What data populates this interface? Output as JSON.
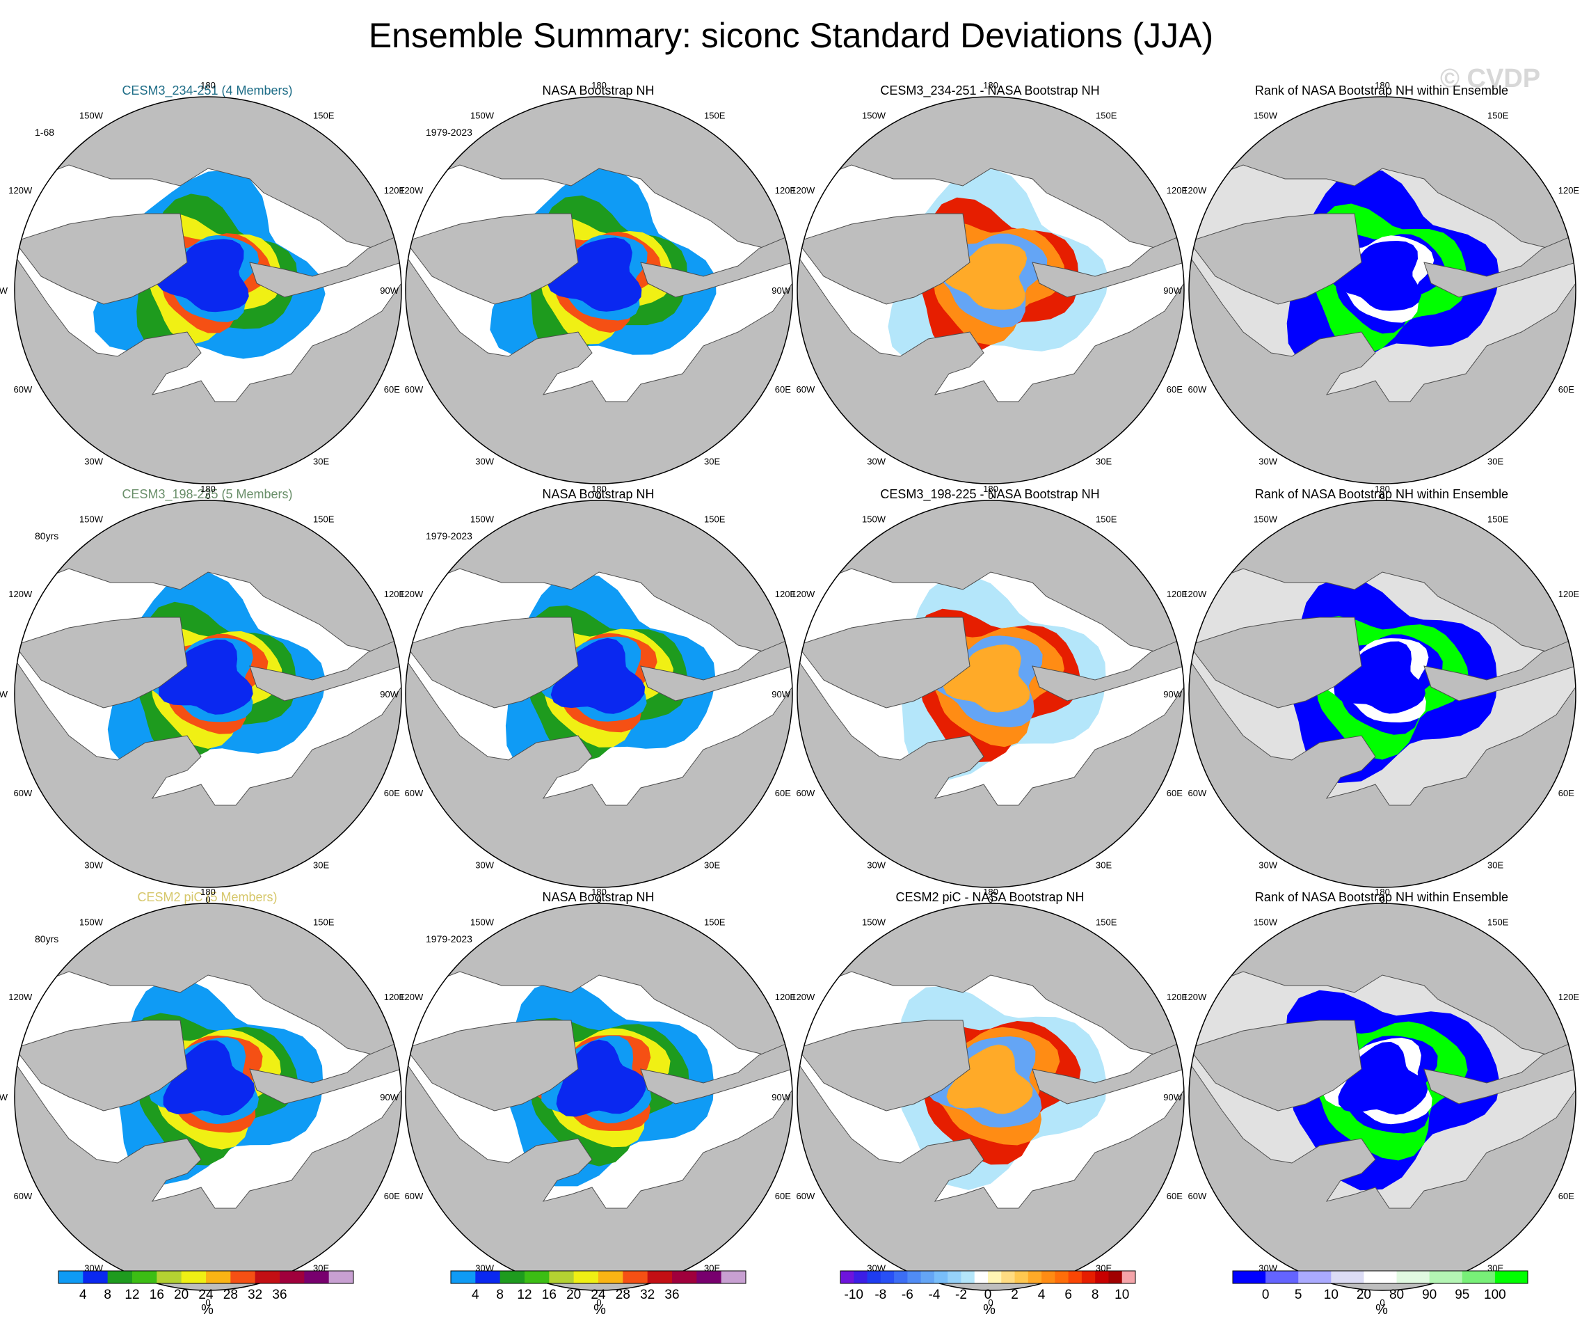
{
  "page": {
    "title": "Ensemble Summary: siconc Standard Deviations (JJA)",
    "watermark": "© CVDP"
  },
  "colors": {
    "land": "#bebebe",
    "no_ice": "#ffffff",
    "rank_background": "#e1e1e1",
    "row1_title": "#1e6d87",
    "row2_title": "#6a8f6a",
    "row3_title": "#d6c76a"
  },
  "rows": [
    {
      "panels": [
        {
          "title": "CESM3_234-251 (4 Members)",
          "period": "1-68",
          "kind": "std"
        },
        {
          "title": "NASA Bootstrap NH",
          "period": "1979-2023",
          "kind": "std"
        },
        {
          "title": "CESM3_234-251 - NASA Bootstrap NH",
          "period": "",
          "kind": "diff"
        },
        {
          "title": "Rank of NASA Bootstrap NH within Ensemble",
          "period": "",
          "kind": "rank"
        }
      ]
    },
    {
      "panels": [
        {
          "title": "CESM3_198-225 (5 Members)",
          "period": "80yrs",
          "kind": "std"
        },
        {
          "title": "NASA Bootstrap NH",
          "period": "1979-2023",
          "kind": "std"
        },
        {
          "title": "CESM3_198-225 - NASA Bootstrap NH",
          "period": "",
          "kind": "diff"
        },
        {
          "title": "Rank of NASA Bootstrap NH within Ensemble",
          "period": "",
          "kind": "rank"
        }
      ]
    },
    {
      "panels": [
        {
          "title": "CESM2 piC (5 Members)",
          "period": "80yrs",
          "kind": "std"
        },
        {
          "title": "NASA Bootstrap NH",
          "period": "1979-2023",
          "kind": "std"
        },
        {
          "title": "CESM2 piC - NASA Bootstrap NH",
          "period": "",
          "kind": "diff"
        },
        {
          "title": "Rank of NASA Bootstrap NH within Ensemble",
          "period": "",
          "kind": "rank"
        }
      ]
    }
  ],
  "map_labels": [
    "180",
    "150E",
    "120E",
    "90E",
    "60E",
    "30E",
    "0",
    "30W",
    "60W",
    "90W",
    "120W",
    "150W"
  ],
  "chart_data": [
    {
      "type": "heatmap",
      "name": "ensemble-std-colorbar",
      "variable": "siconc standard deviation",
      "season": "JJA",
      "unit": "%",
      "levels": [
        4,
        8,
        12,
        16,
        20,
        24,
        28,
        32,
        36
      ],
      "tick_labels": [
        "4",
        "8",
        "12",
        "16",
        "20",
        "24",
        "28",
        "32",
        "36"
      ],
      "colors": [
        "#0f9bf5",
        "#0a28f0",
        "#1e9b1e",
        "#3cbe14",
        "#b4d232",
        "#f0f014",
        "#fab414",
        "#f55014",
        "#c30f14",
        "#a0003c",
        "#78006e",
        "#c8a0d2"
      ]
    },
    {
      "type": "heatmap",
      "name": "observation-std-colorbar",
      "variable": "siconc standard deviation",
      "season": "JJA",
      "unit": "%",
      "levels": [
        4,
        8,
        12,
        16,
        20,
        24,
        28,
        32,
        36
      ],
      "tick_labels": [
        "4",
        "8",
        "12",
        "16",
        "20",
        "24",
        "28",
        "32",
        "36"
      ],
      "colors": [
        "#0f9bf5",
        "#0a28f0",
        "#1e9b1e",
        "#3cbe14",
        "#b4d232",
        "#f0f014",
        "#fab414",
        "#f55014",
        "#c30f14",
        "#a0003c",
        "#78006e",
        "#c8a0d2"
      ]
    },
    {
      "type": "heatmap",
      "name": "difference-colorbar",
      "variable": "siconc standard deviation difference",
      "unit": "%",
      "levels": [
        -10,
        -9,
        -8,
        -7,
        -6,
        -5,
        -4,
        -3,
        -2,
        -1,
        0,
        1,
        2,
        3,
        4,
        5,
        6,
        7,
        8,
        9,
        10
      ],
      "tick_labels": [
        "-10",
        "-8",
        "-6",
        "-4",
        "-2",
        "0",
        "2",
        "4",
        "6",
        "8",
        "10"
      ],
      "colors": [
        "#6e14dc",
        "#3c1ee6",
        "#1e3cf0",
        "#2850f5",
        "#3c6ef5",
        "#508cf5",
        "#64a5f5",
        "#78befa",
        "#96d2fa",
        "#b4e6fa",
        "#ffffff",
        "#fff5b4",
        "#ffdc82",
        "#ffc850",
        "#ffaa28",
        "#ff8c14",
        "#ff6e0a",
        "#fa4605",
        "#e61e00",
        "#c80000",
        "#a00000",
        "#f5a5aa"
      ]
    },
    {
      "type": "heatmap",
      "name": "rank-colorbar",
      "variable": "Rank of NASA Bootstrap NH within Ensemble",
      "unit": "%",
      "levels": [
        0,
        5,
        10,
        20,
        80,
        90,
        95,
        100
      ],
      "tick_labels": [
        "0",
        "5",
        "10",
        "20",
        "80",
        "90",
        "95",
        "100"
      ],
      "colors": [
        "#0000ff",
        "#6464ff",
        "#aaaaff",
        "#dcdcf5",
        "#ffffff",
        "#e1fae1",
        "#b4f5b4",
        "#78f078",
        "#00ff00"
      ]
    }
  ]
}
